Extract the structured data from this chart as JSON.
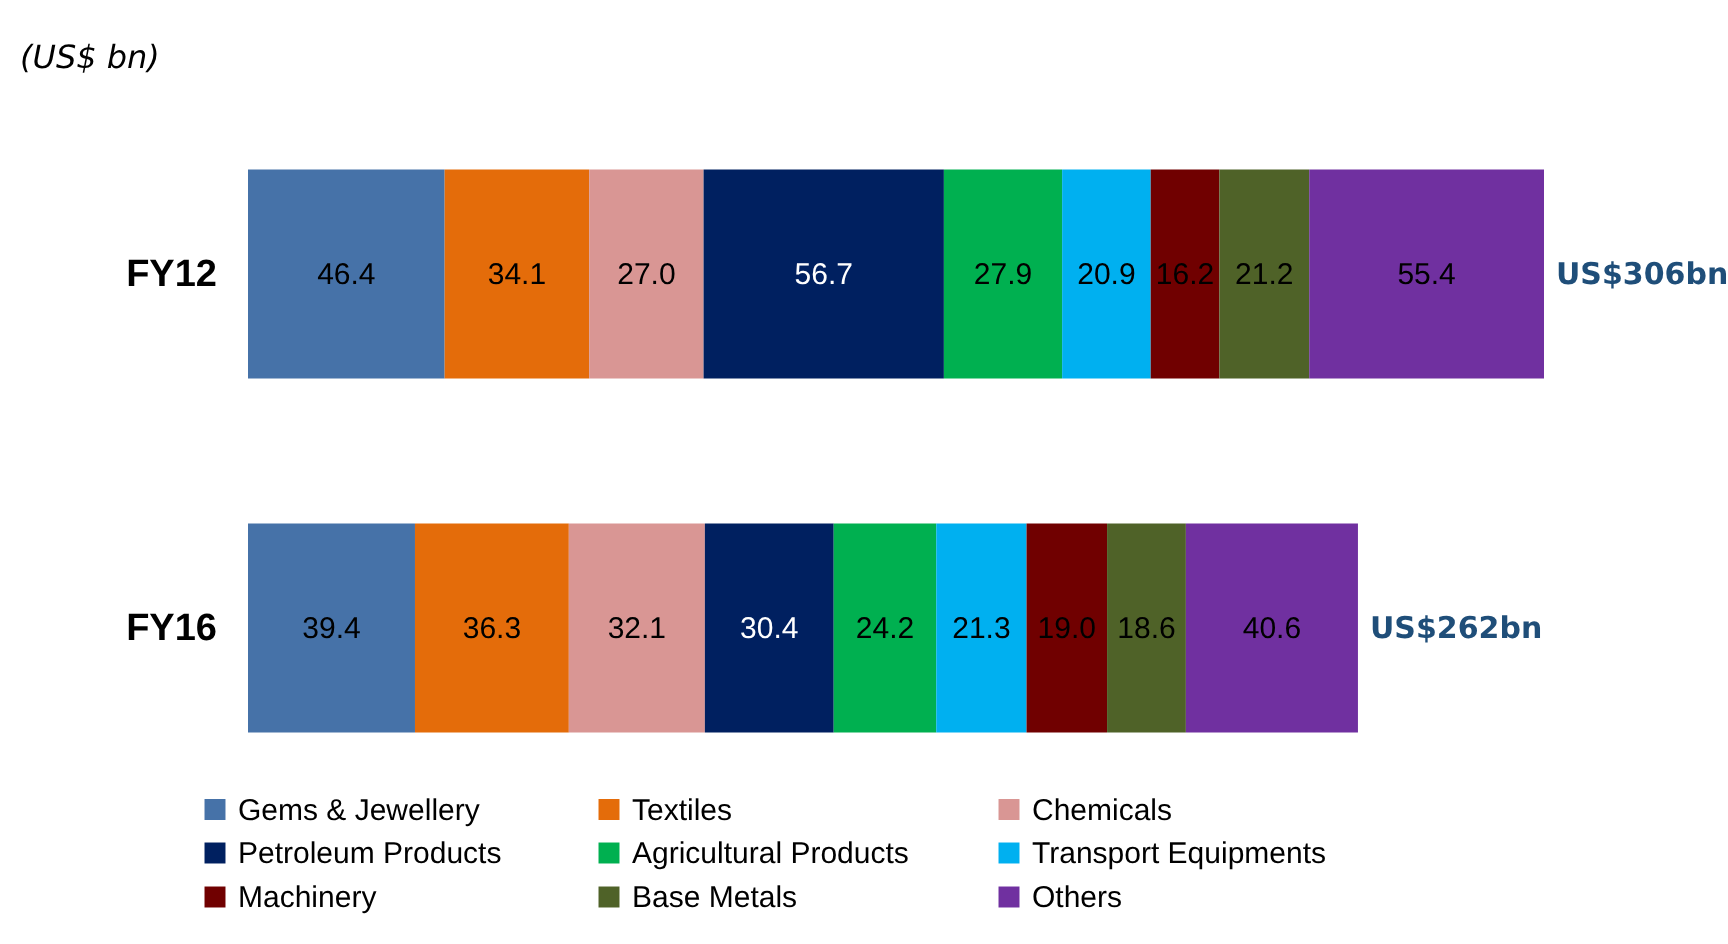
{
  "chart_data": {
    "type": "bar",
    "orientation": "horizontal",
    "stacked": true,
    "title": "(US$ bn)",
    "categories": [
      "FY12",
      "FY16"
    ],
    "series": [
      {
        "name": "Gems & Jewellery",
        "color": "#4672a8",
        "values": [
          46.4,
          39.4
        ],
        "value_labels": [
          "46.4",
          "39.4"
        ]
      },
      {
        "name": "Textiles",
        "color": "#e46c0a",
        "values": [
          34.1,
          36.3
        ],
        "value_labels": [
          "34.1",
          "36.3"
        ]
      },
      {
        "name": "Chemicals",
        "color": "#d99694",
        "values": [
          27.0,
          32.1
        ],
        "value_labels": [
          "27.0",
          "32.1"
        ]
      },
      {
        "name": "Petroleum  Products",
        "color": "#002060",
        "values": [
          56.7,
          30.4
        ],
        "value_labels": [
          "56.7",
          "30.4"
        ]
      },
      {
        "name": "Agricultural Products",
        "color": "#00b050",
        "values": [
          27.9,
          24.2
        ],
        "value_labels": [
          "27.9",
          "24.2"
        ]
      },
      {
        "name": "Transport Equipments",
        "color": "#00b0f0",
        "values": [
          20.9,
          21.3
        ],
        "value_labels": [
          "20.9",
          "21.3"
        ]
      },
      {
        "name": "Machinery",
        "color": "#700000",
        "values": [
          16.2,
          19.0
        ],
        "value_labels": [
          "16.2",
          "19.0"
        ]
      },
      {
        "name": "Base Metals",
        "color": "#4f6228",
        "values": [
          21.2,
          18.6
        ],
        "value_labels": [
          "21.2",
          "18.6"
        ]
      },
      {
        "name": "Others",
        "color": "#7030a0",
        "values": [
          55.4,
          40.6
        ],
        "value_labels": [
          "55.4",
          "40.6"
        ]
      }
    ],
    "totals": [
      "US$306bn",
      "US$262bn"
    ],
    "legend": "bottom"
  }
}
